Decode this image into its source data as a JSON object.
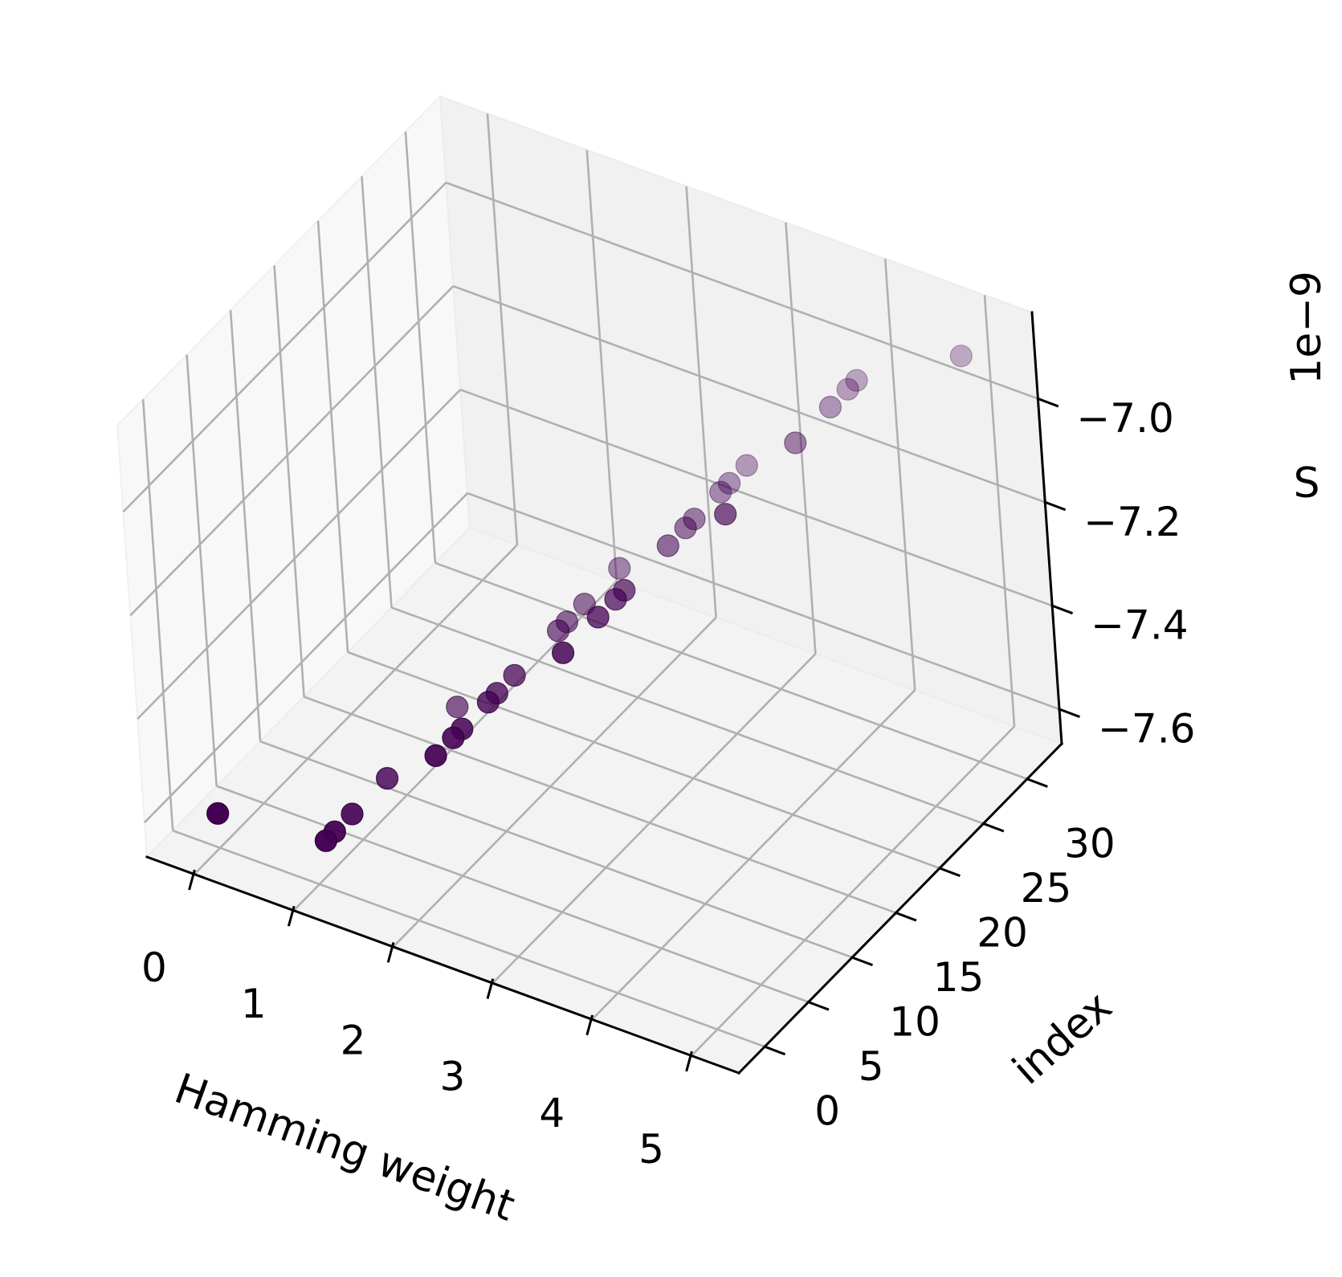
{
  "chart_data": {
    "type": "scatter",
    "title": "",
    "xlabel": "Hamming weight",
    "ylabel": "index",
    "zlabel": "S",
    "z_offset_label": "1e−9",
    "xlim": [
      0,
      5
    ],
    "ylim": [
      0,
      31
    ],
    "zlim": [
      -7.6,
      -6.9
    ],
    "x_ticks": [
      "0",
      "1",
      "2",
      "3",
      "4",
      "5"
    ],
    "y_ticks": [
      "0",
      "5",
      "10",
      "15",
      "20",
      "25",
      "30"
    ],
    "z_ticks": [
      "−7.6",
      "−7.4",
      "−7.2",
      "−7.0"
    ],
    "grid": true,
    "marker_color": "#440154",
    "points": [
      {
        "x": 0,
        "y": 0,
        "z": -7.6
      },
      {
        "x": 1,
        "y": 1,
        "z": -7.6
      },
      {
        "x": 1,
        "y": 2,
        "z": -7.6
      },
      {
        "x": 1,
        "y": 4,
        "z": -7.6
      },
      {
        "x": 1,
        "y": 8,
        "z": -7.6
      },
      {
        "x": 1,
        "y": 16,
        "z": -7.6
      },
      {
        "x": 2,
        "y": 3,
        "z": -7.4
      },
      {
        "x": 2,
        "y": 5,
        "z": -7.4
      },
      {
        "x": 2,
        "y": 6,
        "z": -7.4
      },
      {
        "x": 2,
        "y": 9,
        "z": -7.4
      },
      {
        "x": 2,
        "y": 10,
        "z": -7.4
      },
      {
        "x": 2,
        "y": 12,
        "z": -7.4
      },
      {
        "x": 2,
        "y": 17,
        "z": -7.4
      },
      {
        "x": 2,
        "y": 18,
        "z": -7.4
      },
      {
        "x": 2,
        "y": 20,
        "z": -7.4
      },
      {
        "x": 2,
        "y": 24,
        "z": -7.4
      },
      {
        "x": 3,
        "y": 7,
        "z": -7.2
      },
      {
        "x": 3,
        "y": 11,
        "z": -7.2
      },
      {
        "x": 3,
        "y": 13,
        "z": -7.2
      },
      {
        "x": 3,
        "y": 14,
        "z": -7.2
      },
      {
        "x": 3,
        "y": 19,
        "z": -7.2
      },
      {
        "x": 3,
        "y": 21,
        "z": -7.2
      },
      {
        "x": 3,
        "y": 22,
        "z": -7.2
      },
      {
        "x": 3,
        "y": 25,
        "z": -7.2
      },
      {
        "x": 3,
        "y": 26,
        "z": -7.2
      },
      {
        "x": 3,
        "y": 28,
        "z": -7.2
      },
      {
        "x": 4,
        "y": 15,
        "z": -7.0
      },
      {
        "x": 4,
        "y": 23,
        "z": -7.0
      },
      {
        "x": 4,
        "y": 27,
        "z": -7.0
      },
      {
        "x": 4,
        "y": 29,
        "z": -7.0
      },
      {
        "x": 4,
        "y": 30,
        "z": -7.0
      },
      {
        "x": 5,
        "y": 31,
        "z": -6.9
      }
    ]
  }
}
